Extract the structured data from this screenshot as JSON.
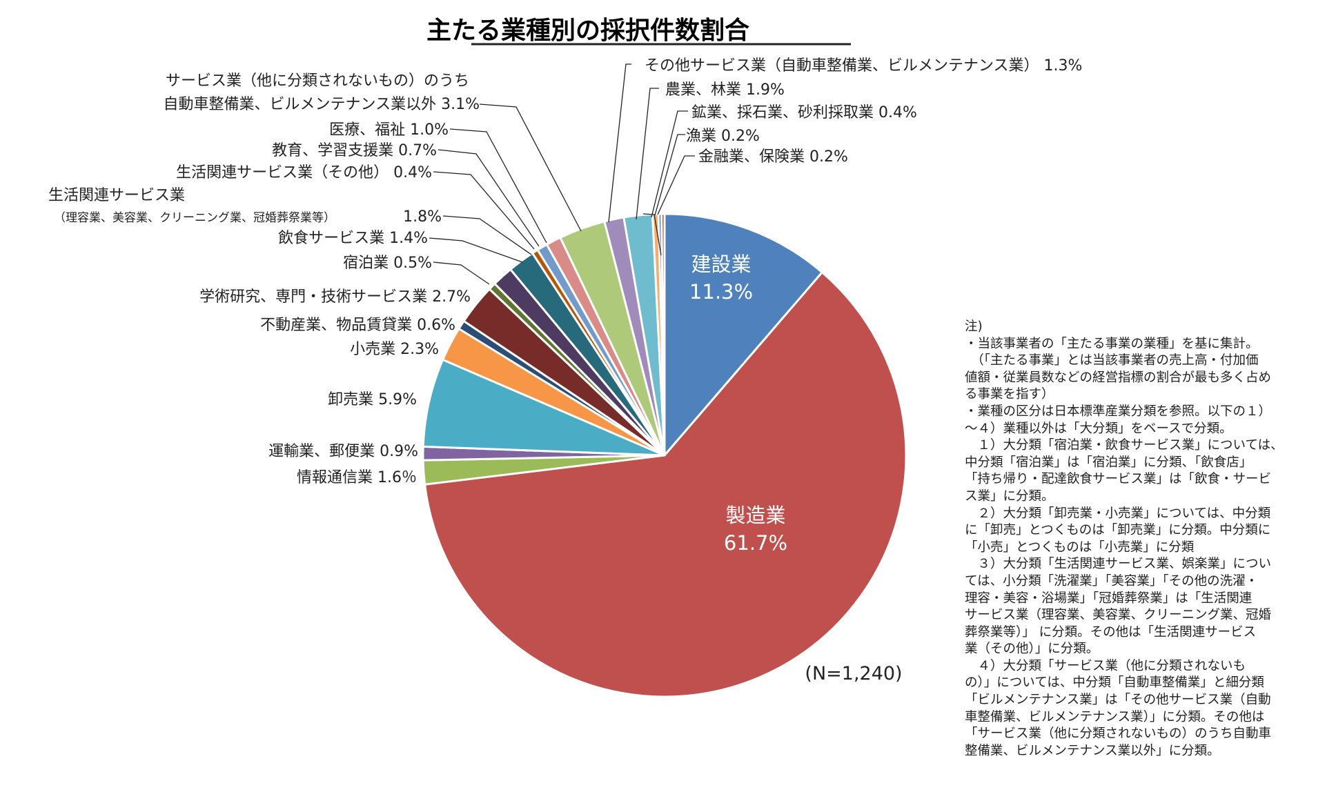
{
  "chart_data": {
    "type": "pie",
    "title": "主たる業種別の採択件数割合",
    "note": "(N=1,240)",
    "slices": [
      {
        "name": "建設業",
        "value": 11.3,
        "label": "11.3%",
        "color": "#4f81bd"
      },
      {
        "name": "製造業",
        "value": 61.7,
        "label": "61.7%",
        "color": "#c0504d"
      },
      {
        "name": "情報通信業",
        "value": 1.6,
        "label": "1.6％",
        "color": "#9bbb59"
      },
      {
        "name": "運輸業、郵便業",
        "value": 0.9,
        "label": "0.9%",
        "color": "#8064a2"
      },
      {
        "name": "卸売業",
        "value": 5.9,
        "label": "5.9%",
        "color": "#4bacc6"
      },
      {
        "name": "小売業",
        "value": 2.3,
        "label": "2.3%",
        "color": "#f79646"
      },
      {
        "name": "不動産業、物品賃貸業",
        "value": 0.6,
        "label": "0.6%",
        "color": "#2c4d75"
      },
      {
        "name": "学術研究、専門・技術サービス業",
        "value": 2.7,
        "label": "2.7%",
        "color": "#772c2a"
      },
      {
        "name": "宿泊業",
        "value": 0.5,
        "label": "0.5%",
        "color": "#5f7530"
      },
      {
        "name": "飲食サービス業",
        "value": 1.4,
        "label": "1.4%",
        "color": "#4d3b62"
      },
      {
        "name": "生活関連サービス業（理容業、美容業、クリーニング業、冠婚葬祭業等）",
        "value": 1.8,
        "label": "1.8%",
        "color": "#276a7c"
      },
      {
        "name": "生活関連サービス業（その他）",
        "value": 0.4,
        "label": "0.4%",
        "color": "#b65708"
      },
      {
        "name": "教育、学習支援業",
        "value": 0.7,
        "label": "0.7%",
        "color": "#729aca"
      },
      {
        "name": "医療、福祉",
        "value": 1.0,
        "label": "1.0%",
        "color": "#d98b88"
      },
      {
        "name": "サービス業（他に分類されないもの）のうち自動車整備業、ビルメンテナンス業以外",
        "value": 3.1,
        "label": "3.1%",
        "color": "#afc97a"
      },
      {
        "name": "その他サービス業（自動車整備業、ビルメンテナンス業）",
        "value": 1.3,
        "label": "1.3%",
        "color": "#9f8cba"
      },
      {
        "name": "農業、林業",
        "value": 1.9,
        "label": "1.9%",
        "color": "#6ebccd"
      },
      {
        "name": "鉱業、採石業、砂利採取業",
        "value": 0.4,
        "label": "0.4%",
        "color": "#f9ab6b"
      },
      {
        "name": "漁業",
        "value": 0.2,
        "label": "0.2%",
        "color": "#3a6aa5"
      },
      {
        "name": "金融業、保険業",
        "value": 0.2,
        "label": "0.2%",
        "color": "#a33c39"
      }
    ]
  },
  "labels": {
    "kensetsu_name": "建設業",
    "seizo_name": "製造業",
    "joho": "情報通信業 1.6％",
    "unyu": "運輸業、郵便業 0.9%",
    "oroshi": "卸売業 5.9%",
    "kouri": "小売業 2.3%",
    "fudosan": "不動産業、物品賃貸業 0.6%",
    "gakujutsu": "学術研究、専門・技術サービス業 2.7%",
    "shukuhaku": "宿泊業 0.5%",
    "inshoku": "飲食サービス業 1.4%",
    "seikatsu1_line1": "生活関連サービス業",
    "seikatsu1_line2": "（理容業、美容業、クリーニング業、冠婚葬祭業等）",
    "seikatsu1_value": "1.8%",
    "seikatsu2": "生活関連サービス業（その他） 0.4%",
    "kyoiku": "教育、学習支援業 0.7%",
    "iryo": "医療、福祉 1.0%",
    "service_line1": "サービス業（他に分類されないもの）のうち",
    "service_line2": "自動車整備業、ビルメンテナンス業以外 3.1%",
    "sonota": "その他サービス業（自動車整備業、ビルメンテナンス業） 1.3%",
    "nogyo": "農業、林業 1.9%",
    "kogyo": "鉱業、採石業、砂利採取業 0.4%",
    "gyogyo": "漁業 0.2%",
    "kinyu": "金融業、保険業 0.2%"
  },
  "notes": [
    "注)",
    "・当該事業者の「主たる事業の業種」を基に集計。",
    "　（「主たる事業」とは当該事業者の売上高・付加価",
    "値額・従業員数などの経営指標の割合が最も多く占め",
    "る事業を指す）",
    "・業種の区分は日本標準産業分類を参照。以下の１）",
    "～４）業種以外は「大分類」をベースで分類。",
    "　１）大分類「宿泊業・飲食サービス業」については、",
    "中分類「宿泊業」は「宿泊業」に分類、「飲食店」",
    "「持ち帰り・配達飲食サービス業」は「飲食・サービ",
    "ス業」に分類。",
    "　２）大分類「卸売業・小売業」については、中分類",
    "に「卸売」とつくものは「卸売業」に分類。中分類に",
    "「小売」とつくものは「小売業」に分類",
    "　３）大分類「生活関連サービス業、娯楽業」につい",
    "ては、小分類「洗濯業」「美容業」「その他の洗濯・",
    "理容・美容・浴場業」「冠婚葬祭業」は「生活関連",
    "サービス業（理容業、美容業、クリーニング業、冠婚",
    "葬祭業等）」 に分類。その他は「生活関連サービス",
    "業（その他）」に分類。",
    "　４）大分類「サービス業（他に分類されないも",
    "の）」については、中分類「自動車整備業」と細分類",
    "「ビルメンテナンス業」は「その他サービス業（自動",
    "車整備業、ビルメンテナンス業）」に分類。その他は",
    "「サービス業（他に分類されないもの）のうち自動車",
    "整備業、ビルメンテナンス業以外」に分類。"
  ]
}
